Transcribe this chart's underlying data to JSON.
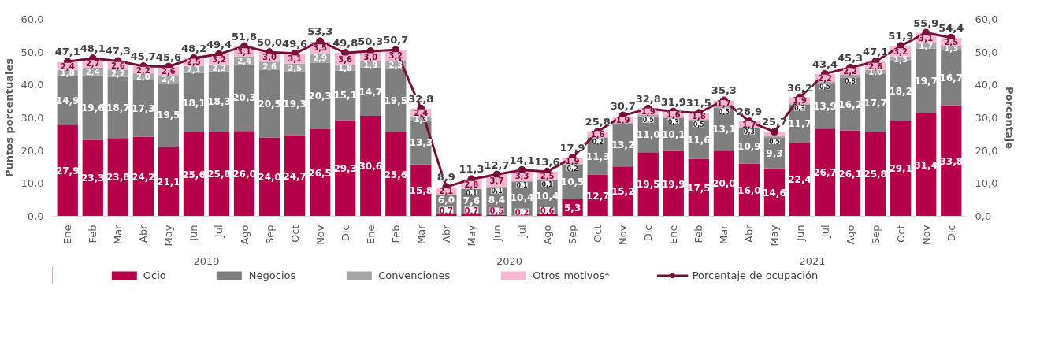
{
  "chart_data": {
    "type": "bar",
    "stacked": true,
    "xlabel": null,
    "ylabel": "Puntos porcentuales",
    "y2label": "Porcentaje",
    "categories": [
      "Ene",
      "Feb",
      "Mar",
      "Abr",
      "May",
      "Jun",
      "Jul",
      "Ago",
      "Sep",
      "Oct",
      "Nov",
      "Dic",
      "Ene",
      "Feb",
      "Mar",
      "Abr",
      "May",
      "Jun",
      "Jul",
      "Ago",
      "Sep",
      "Oct",
      "Nov",
      "Dic",
      "Ene",
      "Feb",
      "Mar",
      "Abr",
      "May",
      "Jun",
      "Jul",
      "Ago",
      "Sep",
      "Oct",
      "Nov",
      "Dic"
    ],
    "annotations": [
      "2019",
      "2020",
      "2021"
    ],
    "ylim": [
      0,
      60
    ],
    "yticks": [
      {
        "value": 0,
        "label": "0,0"
      },
      {
        "value": 10,
        "label": "10,0"
      },
      {
        "value": 20,
        "label": "20,0"
      },
      {
        "value": 30,
        "label": "30,0"
      },
      {
        "value": 40,
        "label": "40,0"
      },
      {
        "value": 50,
        "label": "50,0"
      },
      {
        "value": 60,
        "label": "60,0"
      }
    ],
    "y2lim": [
      0,
      60
    ],
    "y2ticks": [
      {
        "value": 0,
        "label": "0,0"
      },
      {
        "value": 10,
        "label": "10,0"
      },
      {
        "value": 20,
        "label": "20,0"
      },
      {
        "value": 30,
        "label": "30,0"
      },
      {
        "value": 40,
        "label": "40,0"
      },
      {
        "value": 50,
        "label": "50,0"
      },
      {
        "value": 60,
        "label": "60,0"
      }
    ],
    "grid": false,
    "legend": "bottom",
    "marker": "circle",
    "line_style": "solid",
    "series": [
      {
        "name": "Ocio",
        "color": "#b5004a",
        "values": [
          27.9,
          23.3,
          23.8,
          24.2,
          21.1,
          25.6,
          25.8,
          26.0,
          24.0,
          24.7,
          26.5,
          29.3,
          30.6,
          25.6,
          15.8,
          0.7,
          0.7,
          0.5,
          0.2,
          0.6,
          5.3,
          12.7,
          15.2,
          19.5,
          19.9,
          17.5,
          20.0,
          16.0,
          14.6,
          22.4,
          26.7,
          26.1,
          25.8,
          29.1,
          31.4,
          33.8
        ],
        "value_labels": [
          "27,9",
          "23,3",
          "23,8",
          "24,2",
          "21,1",
          "25,6",
          "25,8",
          "26,0",
          "24,0",
          "24,7",
          "26,5",
          "29,3",
          "30,6",
          "25,6",
          "15,8",
          "0,7",
          "0,7",
          "0,5",
          "0,2",
          "0,6",
          "5,3",
          "12,7",
          "15,2",
          "19,5",
          "19,9",
          "17,5",
          "20,0",
          "16,0",
          "14,6",
          "22,4",
          "26,7",
          "26,1",
          "25,8",
          "29,1",
          "31,4",
          "33,8"
        ]
      },
      {
        "name": "Negocios",
        "color": "#7f7f7f",
        "values": [
          14.9,
          19.6,
          18.7,
          17.3,
          19.5,
          18.1,
          18.3,
          20.3,
          20.5,
          19.3,
          20.3,
          15.1,
          14.7,
          19.5,
          13.3,
          6.0,
          7.6,
          8.4,
          10.4,
          10.4,
          10.5,
          11.3,
          13.2,
          11.0,
          10.1,
          11.6,
          13.1,
          10.9,
          9.3,
          11.7,
          13.9,
          16.2,
          17.7,
          18.2,
          19.7,
          16.7
        ],
        "value_labels": [
          "14,9",
          "19,6",
          "18,7",
          "17,3",
          "19,5",
          "18,1",
          "18,3",
          "20,3",
          "20,5",
          "19,3",
          "20,3",
          "15,1",
          "14,7",
          "19,5",
          "13,3",
          "6,0",
          "7,6",
          "8,4",
          "10,4",
          "10,4",
          "10,5",
          "11,3",
          "13,2",
          "11,0",
          "10,1",
          "11,6",
          "13,1",
          "10,9",
          "9,3",
          "11,7",
          "13,9",
          "16,2",
          "17,7",
          "18,2",
          "19,7",
          "16,7"
        ]
      },
      {
        "name": "Convenciones",
        "color": "#a6a6a6",
        "values": [
          1.8,
          2.4,
          2.2,
          2.0,
          2.4,
          2.1,
          2.2,
          2.4,
          2.6,
          2.5,
          2.9,
          1.8,
          1.9,
          2.3,
          1.3,
          null,
          0.1,
          0.1,
          0.1,
          0.1,
          0.2,
          0.2,
          null,
          0.5,
          0.3,
          0.5,
          0.5,
          0.3,
          0.5,
          0.3,
          0.5,
          0.8,
          1.0,
          1.3,
          1.7,
          1.3
        ],
        "value_labels": [
          "1,8",
          "2,4",
          "2,2",
          "2,0",
          "2,4",
          "2,1",
          "2,2",
          "2,4",
          "2,6",
          "2,5",
          "2,9",
          "1,8",
          "1,9",
          "2,3",
          "1,3",
          null,
          "0,1",
          "0,1",
          "0,1",
          "0,1",
          "0,2",
          "0,2",
          null,
          "0,5",
          "0,3",
          "0,5",
          "0,5",
          "0,3",
          "0,5",
          "0,3",
          "0,5",
          "0,8",
          "1,0",
          "1,3",
          "1,7",
          "1,3"
        ]
      },
      {
        "name": "Otros motivos*",
        "color": "#f7b6d2",
        "values": [
          2.4,
          2.7,
          2.6,
          2.2,
          2.6,
          2.5,
          3.2,
          3.1,
          3.0,
          3.1,
          3.5,
          3.6,
          3.0,
          3.2,
          2.4,
          2.1,
          2.8,
          3.7,
          3.3,
          2.5,
          1.9,
          1.6,
          1.9,
          1.9,
          1.6,
          1.8,
          1.7,
          1.7,
          1.3,
          1.9,
          2.2,
          2.2,
          2.6,
          3.2,
          3.1,
          2.5
        ],
        "value_labels": [
          "2,4",
          "2,7",
          "2,6",
          "2,2",
          "2,6",
          "2,5",
          "3,2",
          "3,1",
          "3,0",
          "3,1",
          "3,5",
          "3,6",
          "3,0",
          "3,2",
          "2,4",
          "2,1",
          "2,8",
          "3,7",
          "3,3",
          "2,5",
          "1,9",
          "1,6",
          "1,9",
          "1,9",
          "1,6",
          "1,8",
          "1,7",
          "1,7",
          null,
          "1,9",
          "2,2",
          "2,2",
          "2,6",
          "3,2",
          "3,1",
          "2,5"
        ]
      },
      {
        "name": "Porcentaje de ocupación",
        "type": "line",
        "axis": "y2",
        "color": "#7b0c36",
        "values": [
          47.1,
          48.1,
          47.3,
          45.7,
          45.6,
          48.2,
          49.4,
          51.8,
          50.0,
          49.6,
          53.3,
          49.8,
          50.3,
          50.7,
          32.8,
          8.9,
          11.3,
          12.7,
          14.1,
          13.6,
          17.9,
          25.8,
          30.7,
          32.8,
          31.9,
          31.5,
          35.3,
          28.9,
          25.7,
          36.2,
          43.4,
          45.3,
          47.1,
          51.9,
          55.9,
          54.4
        ],
        "value_labels": [
          "47,1",
          "48,1",
          "47,3",
          "45,7",
          "45,6",
          "48,2",
          "49,4",
          "51,8",
          "50,0",
          "49,6",
          "53,3",
          "49,8",
          "50,3",
          "50,7",
          "32,8",
          "8,9",
          "11,3",
          "12,7",
          "14,1",
          "13,6",
          "17,9",
          "25,8",
          "30,7",
          "32,8",
          "31,9",
          "31,5",
          "35,3",
          "28,9",
          "25,7",
          "36,2",
          "43,4",
          "45,3",
          "47,1",
          "51,9",
          "55,9",
          "54,4"
        ]
      }
    ]
  }
}
